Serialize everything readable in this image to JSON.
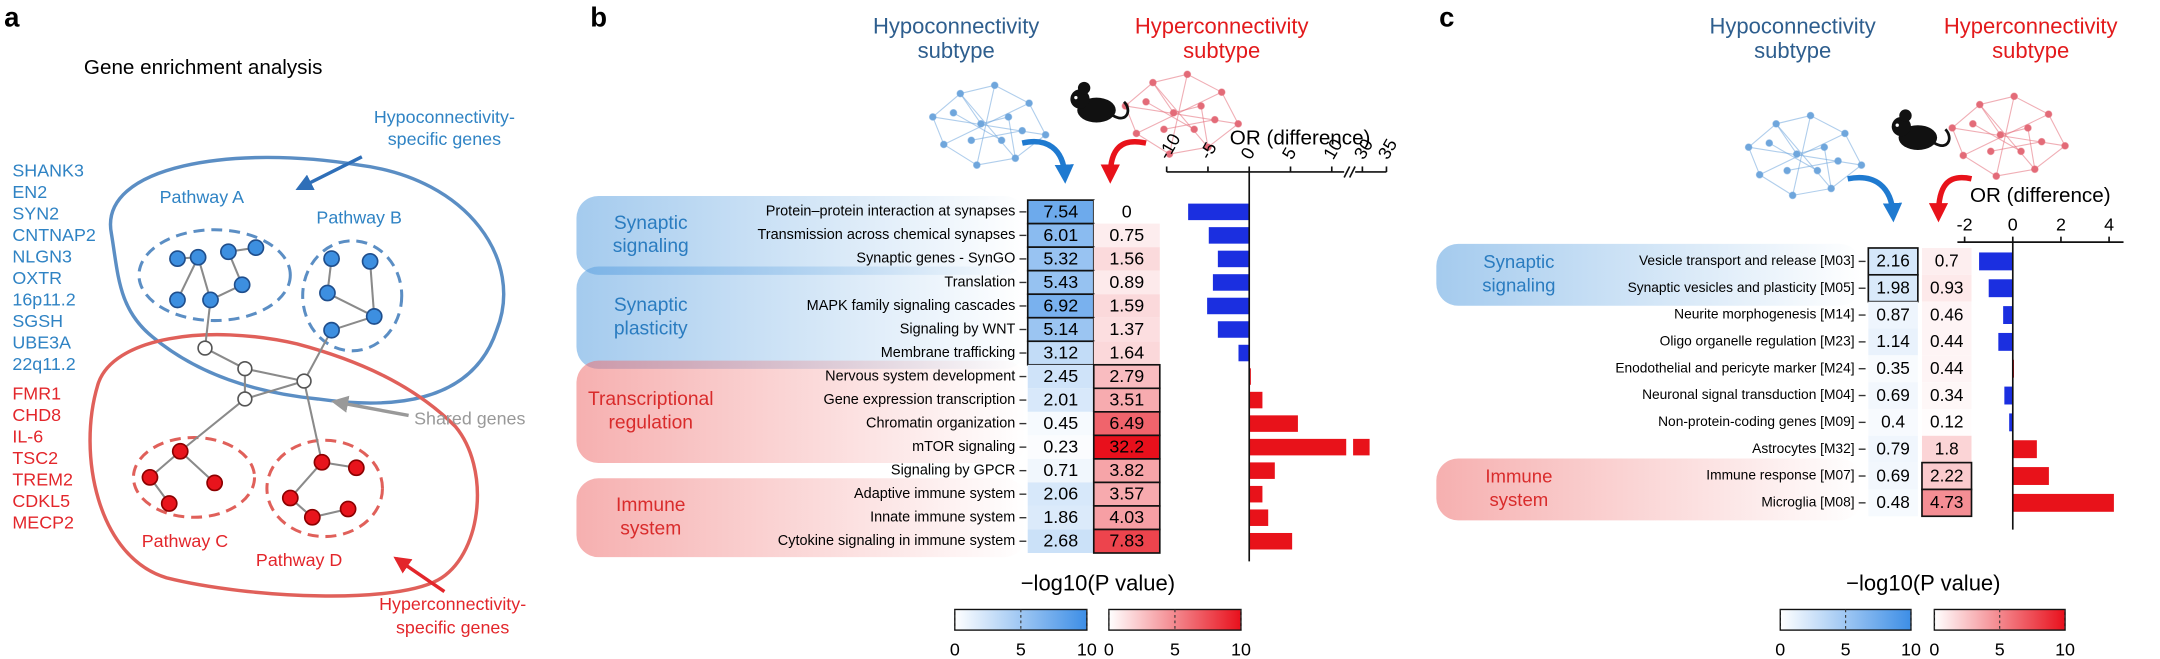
{
  "panel_a": {
    "label": "a",
    "title": "Gene enrichment analysis",
    "hypo_genes": [
      "SHANK3",
      "EN2",
      "SYN2",
      "CNTNAP2",
      "NLGN3",
      "OXTR",
      "16p11.2",
      "SGSH",
      "UBE3A",
      "22q11.2"
    ],
    "hyper_genes": [
      "FMR1",
      "CHD8",
      "IL-6",
      "TSC2",
      "TREM2",
      "CDKL5",
      "MECP2"
    ],
    "pathways": [
      "Pathway A",
      "Pathway B",
      "Pathway C",
      "Pathway D"
    ],
    "hypo_annotation": [
      "Hypoconnectivity-",
      "specific genes"
    ],
    "shared_annotation": "Shared genes",
    "hyper_annotation": [
      "Hyperconnectivity-",
      "specific genes"
    ]
  },
  "chart_data": [
    {
      "type": "bar",
      "label": "b",
      "hypo_title": [
        "Hypoconnectivity",
        "subtype"
      ],
      "hyper_title": [
        "Hyperconnectivity",
        "subtype"
      ],
      "xlabel": "OR (difference)",
      "categories": [
        "Protein–protein interaction at synapses",
        "Transmission across chemical synapses",
        "Synaptic genes - SynGO",
        "Translation",
        "MAPK family signaling cascades",
        "Signaling by WNT",
        "Membrane trafficking",
        "Nervous system development",
        "Gene expression transcription",
        "Chromatin organization",
        "mTOR signaling",
        "Signaling by GPCR",
        "Adaptive immune system",
        "Innate immune system",
        "Cytokine signaling in immune system"
      ],
      "hypo_values": [
        7.54,
        6.01,
        5.32,
        5.43,
        6.92,
        5.14,
        3.12,
        2.45,
        2.01,
        0.45,
        0.23,
        0.71,
        2.06,
        1.86,
        2.68
      ],
      "hyper_values": [
        0,
        0.75,
        1.56,
        0.89,
        1.59,
        1.37,
        1.64,
        2.79,
        3.51,
        6.49,
        32.2,
        3.82,
        3.57,
        4.03,
        7.83
      ],
      "hypo_boxed": [
        true,
        true,
        true,
        true,
        true,
        true,
        true,
        false,
        false,
        false,
        false,
        false,
        false,
        false,
        false
      ],
      "hyper_boxed": [
        false,
        false,
        false,
        false,
        false,
        false,
        false,
        true,
        true,
        true,
        true,
        true,
        true,
        true,
        true
      ],
      "values": [
        -7.4,
        -4.9,
        -3.8,
        -4.4,
        -5.1,
        -3.8,
        -1.3,
        0.2,
        1.6,
        5.9,
        31.5,
        3.1,
        1.6,
        2.3,
        5.2
      ],
      "xlim": [
        -10,
        35
      ],
      "xticks": [
        -10,
        -5,
        0,
        5,
        10,
        30,
        35
      ],
      "xbreak": [
        11.5,
        28.5
      ],
      "colors": {
        "negative": "#1b2fe0",
        "positive": "#e8121a"
      },
      "groups": [
        {
          "name": [
            "Synaptic",
            "signaling"
          ],
          "color": "#5aa0e0",
          "rows": [
            0,
            2
          ]
        },
        {
          "name": [
            "Synaptic",
            "plasticity"
          ],
          "color": "#5aa0e0",
          "rows": [
            3,
            6
          ]
        },
        {
          "name": [
            "Transcriptional",
            "regulation"
          ],
          "color": "#ef6f6f",
          "rows": [
            7,
            10
          ]
        },
        {
          "name": [
            "Immune",
            "system"
          ],
          "color": "#ef6f6f",
          "rows": [
            12,
            14
          ]
        }
      ],
      "colorbar_label": "−log10(P value)",
      "colorbar_lim": [
        0,
        10
      ],
      "colorbar_ticks": [
        0,
        5,
        10
      ],
      "cmaps": {
        "hypo": [
          "#ffffff",
          "#3d8ee6"
        ],
        "hyper": [
          "#ffffff",
          "#e8101c"
        ]
      }
    },
    {
      "type": "bar",
      "label": "c",
      "hypo_title": [
        "Hypoconnectivity",
        "subtype"
      ],
      "hyper_title": [
        "Hyperconnectivity",
        "subtype"
      ],
      "xlabel": "OR (difference)",
      "categories": [
        "Vesicle transport and release [M03]",
        "Synaptic vesicles and plasticity [M05]",
        "Neurite morphogenesis [M14]",
        "Oligo organelle regulation [M23]",
        "Enodothelial and pericyte marker [M24]",
        "Neuronal signal transduction [M04]",
        "Non-protein-coding genes [M09]",
        "Astrocytes [M32]",
        "Immune response [M07]",
        "Microglia [M08]"
      ],
      "hypo_values": [
        2.16,
        1.98,
        0.87,
        1.14,
        0.35,
        0.69,
        0.4,
        0.79,
        0.69,
        0.48
      ],
      "hyper_values": [
        0.7,
        0.93,
        0.46,
        0.44,
        0.44,
        0.34,
        0.12,
        1.8,
        2.22,
        4.73
      ],
      "hypo_boxed": [
        true,
        true,
        false,
        false,
        false,
        false,
        false,
        false,
        false,
        false
      ],
      "hyper_boxed": [
        false,
        false,
        false,
        false,
        false,
        false,
        false,
        false,
        true,
        true
      ],
      "values": [
        -1.4,
        -1.0,
        -0.4,
        -0.6,
        0.05,
        -0.35,
        -0.15,
        1.0,
        1.5,
        4.2
      ],
      "xlim": [
        -2.3,
        4.6
      ],
      "xticks": [
        -2,
        0,
        2,
        4
      ],
      "colors": {
        "negative": "#1b2fe0",
        "positive": "#e8121a"
      },
      "groups": [
        {
          "name": [
            "Synaptic",
            "signaling"
          ],
          "color": "#5aa0e0",
          "rows": [
            0,
            1
          ]
        },
        {
          "name": [
            "Immune",
            "system"
          ],
          "color": "#ef6f6f",
          "rows": [
            8,
            9
          ]
        }
      ],
      "colorbar_label": "−log10(P value)",
      "colorbar_lim": [
        0,
        10
      ],
      "colorbar_ticks": [
        0,
        5,
        10
      ],
      "cmaps": {
        "hypo": [
          "#ffffff",
          "#3d8ee6"
        ],
        "hyper": [
          "#ffffff",
          "#e8101c"
        ]
      }
    }
  ]
}
